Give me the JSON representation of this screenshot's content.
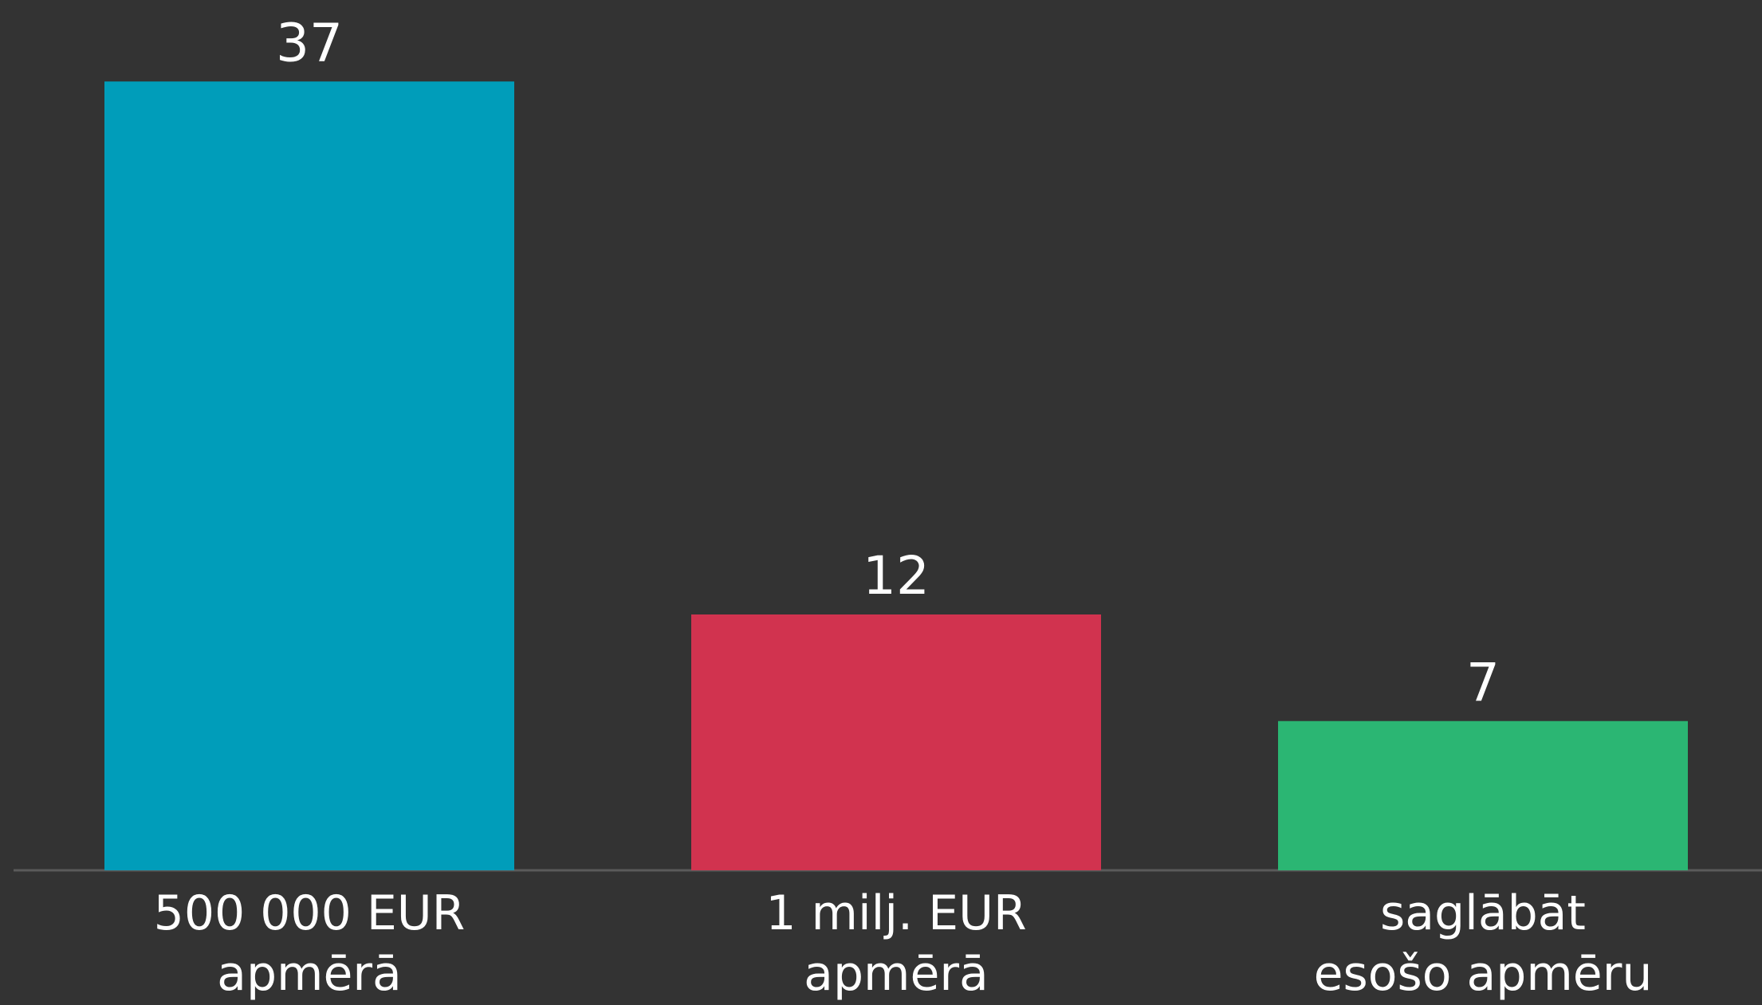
{
  "chart_data": {
    "type": "bar",
    "categories": [
      "500 000 EUR\napmērā",
      "1 milj. EUR\napmērā",
      "saglābāt\nesošo apmēru"
    ],
    "values": [
      37,
      12,
      7
    ],
    "colors": [
      "#009dba",
      "#d1334f",
      "#2bb673"
    ]
  }
}
